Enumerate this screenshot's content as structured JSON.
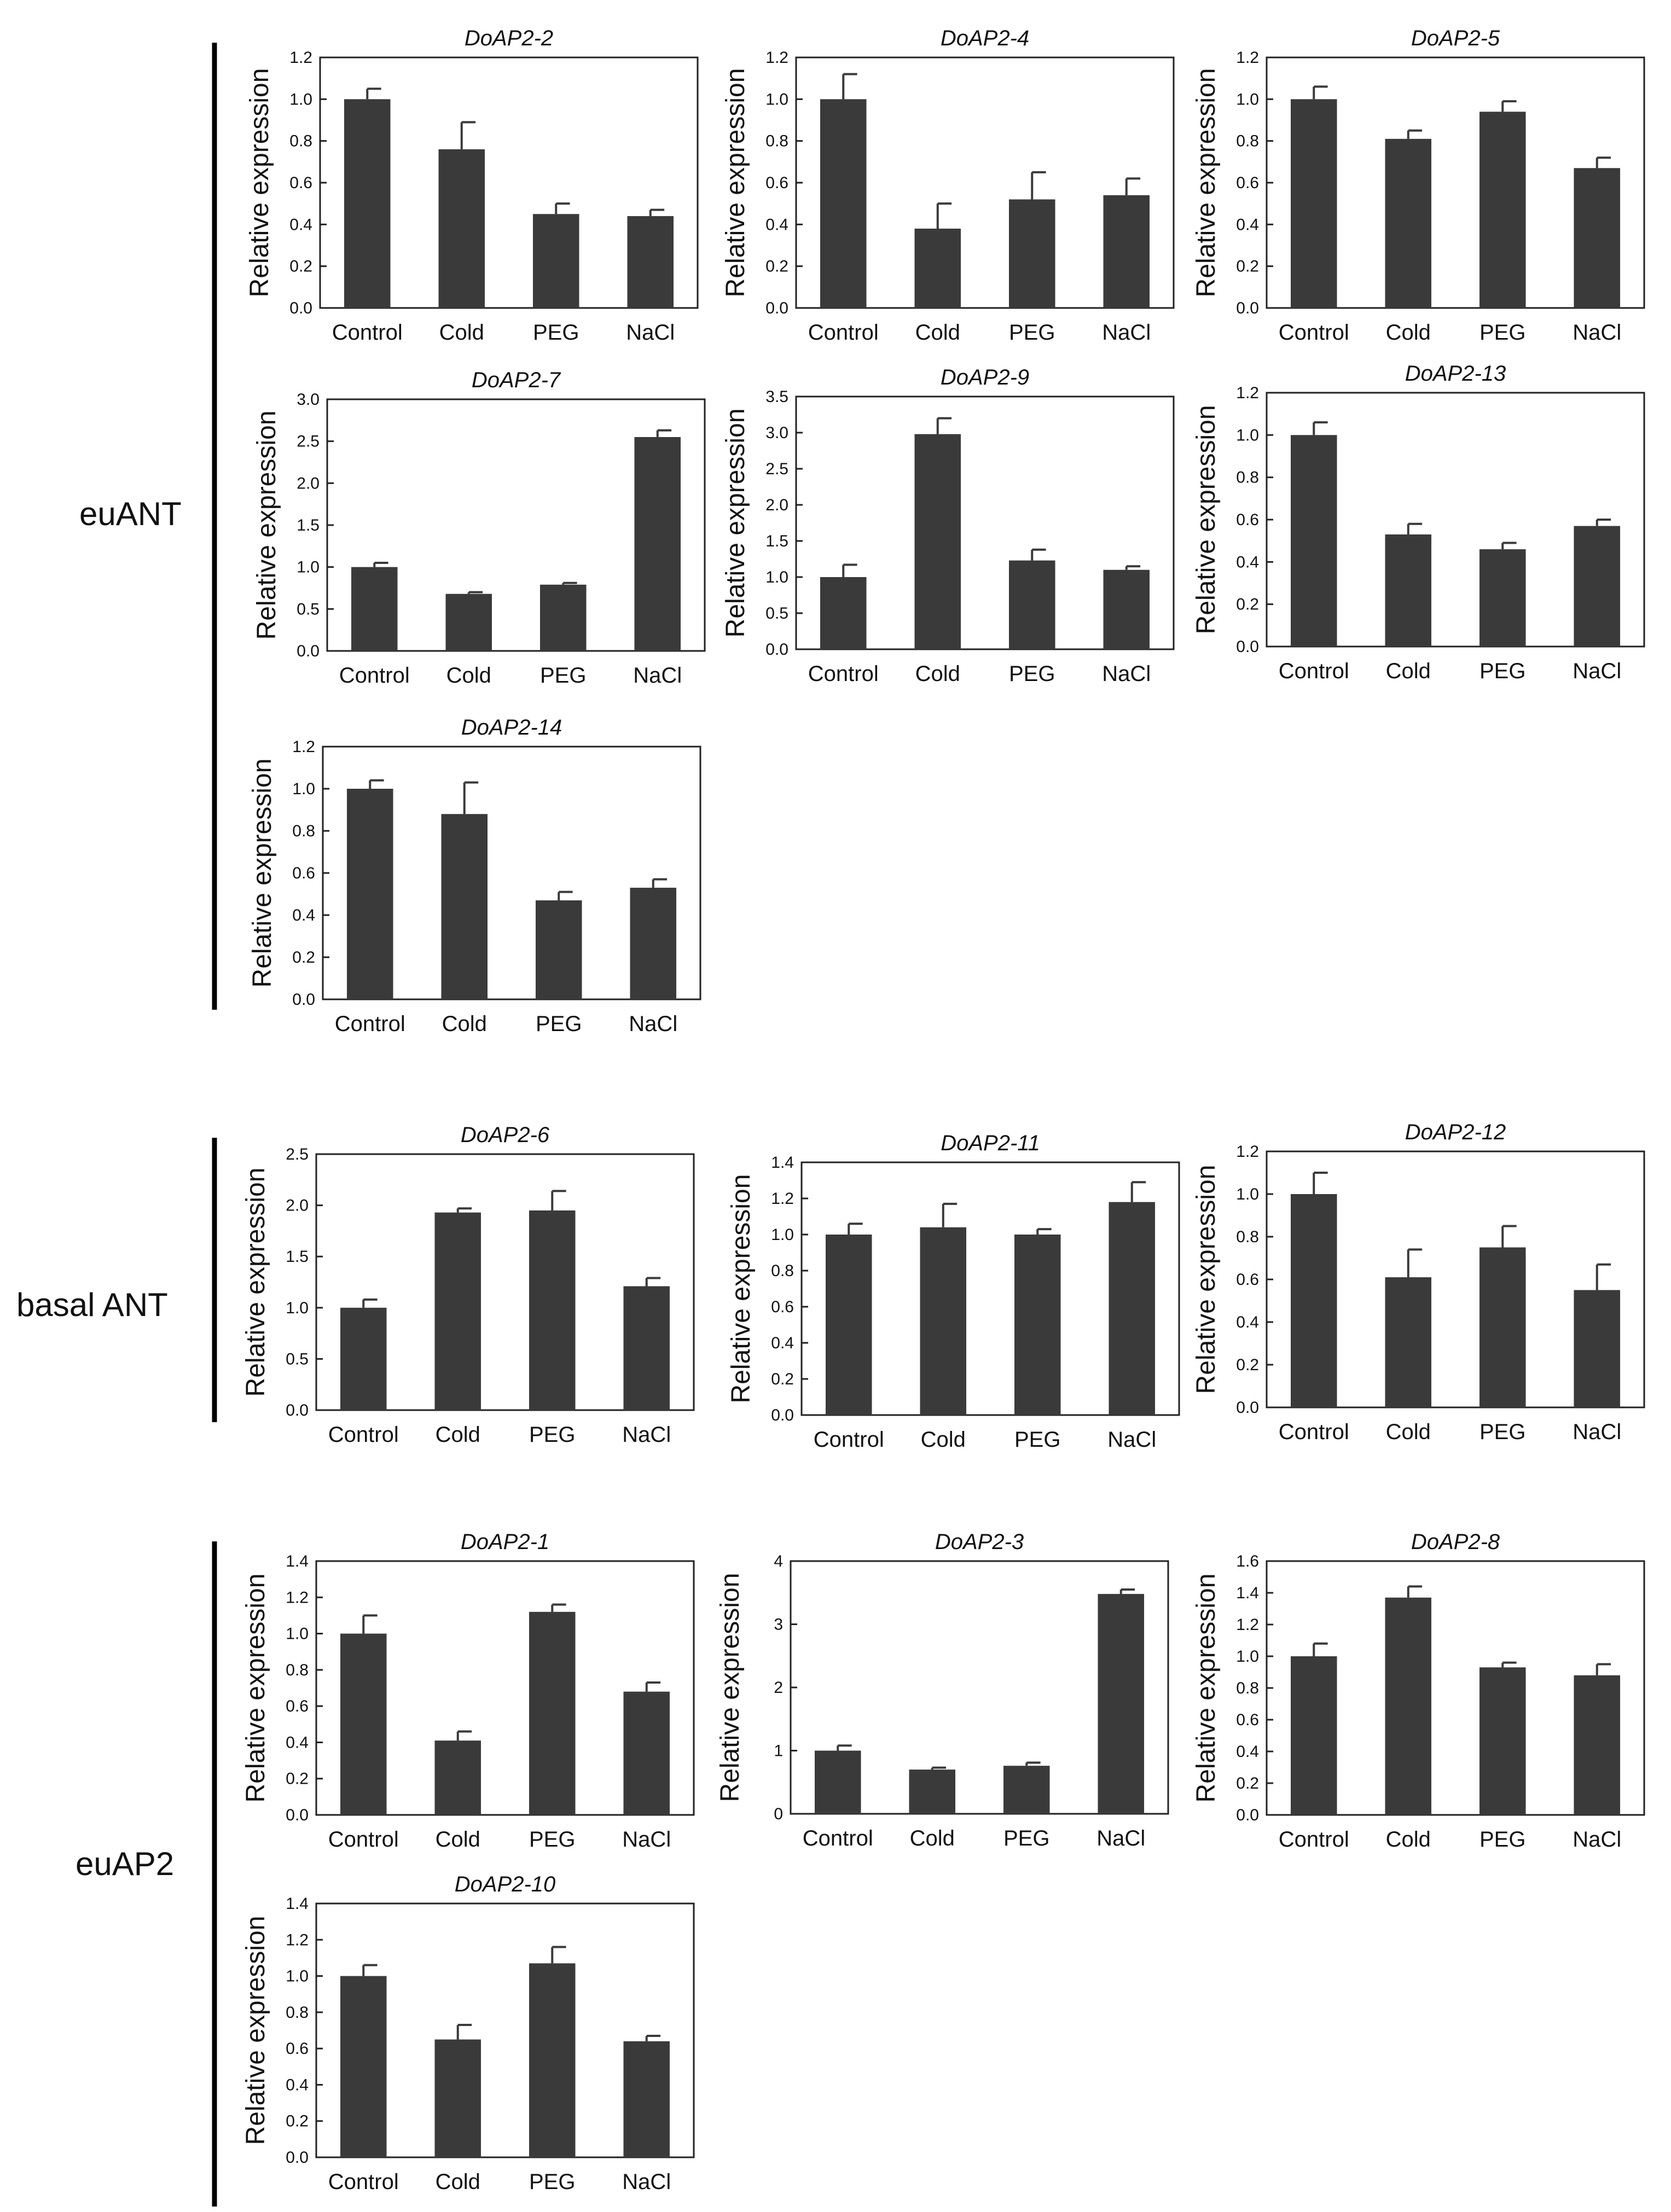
{
  "chart_data": [
    {
      "type": "bar",
      "title": "DoAP2-2",
      "group": "euANT",
      "ylabel": "Relative expression",
      "categories": [
        "Control",
        "Cold",
        "PEG",
        "NaCl"
      ],
      "values": [
        1.0,
        0.76,
        0.45,
        0.44
      ],
      "errors": [
        0.05,
        0.13,
        0.05,
        0.03
      ],
      "ylim": [
        0,
        1.2
      ],
      "yticks": [
        0,
        0.2,
        0.4,
        0.6,
        0.8,
        1.0,
        1.2
      ],
      "tick_labels": [
        "0.0",
        "0.2",
        "0.4",
        "0.6",
        "0.8",
        "1.0",
        "1.2"
      ]
    },
    {
      "type": "bar",
      "title": "DoAP2-4",
      "group": "euANT",
      "ylabel": "Relative expression",
      "categories": [
        "Control",
        "Cold",
        "PEG",
        "NaCl"
      ],
      "values": [
        1.0,
        0.38,
        0.52,
        0.54
      ],
      "errors": [
        0.12,
        0.12,
        0.13,
        0.08
      ],
      "ylim": [
        0,
        1.2
      ],
      "yticks": [
        0,
        0.2,
        0.4,
        0.6,
        0.8,
        1.0,
        1.2
      ],
      "tick_labels": [
        "0.0",
        "0.2",
        "0.4",
        "0.6",
        "0.8",
        "1.0",
        "1.2"
      ]
    },
    {
      "type": "bar",
      "title": "DoAP2-5",
      "group": "euANT",
      "ylabel": "Relative expression",
      "categories": [
        "Control",
        "Cold",
        "PEG",
        "NaCl"
      ],
      "values": [
        1.0,
        0.81,
        0.94,
        0.67
      ],
      "errors": [
        0.06,
        0.04,
        0.05,
        0.05
      ],
      "ylim": [
        0,
        1.2
      ],
      "yticks": [
        0,
        0.2,
        0.4,
        0.6,
        0.8,
        1.0,
        1.2
      ],
      "tick_labels": [
        "0.0",
        "0.2",
        "0.4",
        "0.6",
        "0.8",
        "1.0",
        "1.2"
      ]
    },
    {
      "type": "bar",
      "title": "DoAP2-7",
      "group": "euANT",
      "ylabel": "Relative expression",
      "categories": [
        "Control",
        "Cold",
        "PEG",
        "NaCl"
      ],
      "values": [
        1.0,
        0.68,
        0.79,
        2.55
      ],
      "errors": [
        0.05,
        0.02,
        0.02,
        0.08
      ],
      "ylim": [
        0,
        3.0
      ],
      "yticks": [
        0,
        0.5,
        1.0,
        1.5,
        2.0,
        2.5,
        3.0
      ],
      "tick_labels": [
        "0.0",
        "0.5",
        "1.0",
        "1.5",
        "2.0",
        "2.5",
        "3.0"
      ]
    },
    {
      "type": "bar",
      "title": "DoAP2-9",
      "group": "euANT",
      "ylabel": "Relative expression",
      "categories": [
        "Control",
        "Cold",
        "PEG",
        "NaCl"
      ],
      "values": [
        1.0,
        2.98,
        1.23,
        1.1
      ],
      "errors": [
        0.17,
        0.22,
        0.15,
        0.05
      ],
      "ylim": [
        0,
        3.5
      ],
      "yticks": [
        0,
        0.5,
        1.0,
        1.5,
        2.0,
        2.5,
        3.0,
        3.5
      ],
      "tick_labels": [
        "0.0",
        "0.5",
        "1.0",
        "1.5",
        "2.0",
        "2.5",
        "3.0",
        "3.5"
      ]
    },
    {
      "type": "bar",
      "title": "DoAP2-13",
      "group": "euANT",
      "ylabel": "Relative expression",
      "categories": [
        "Control",
        "Cold",
        "PEG",
        "NaCl"
      ],
      "values": [
        1.0,
        0.53,
        0.46,
        0.57
      ],
      "errors": [
        0.06,
        0.05,
        0.03,
        0.03
      ],
      "ylim": [
        0,
        1.2
      ],
      "yticks": [
        0,
        0.2,
        0.4,
        0.6,
        0.8,
        1.0,
        1.2
      ],
      "tick_labels": [
        "0.0",
        "0.2",
        "0.4",
        "0.6",
        "0.8",
        "1.0",
        "1.2"
      ]
    },
    {
      "type": "bar",
      "title": "DoAP2-14",
      "group": "euANT",
      "ylabel": "Relative expression",
      "categories": [
        "Control",
        "Cold",
        "PEG",
        "NaCl"
      ],
      "values": [
        1.0,
        0.88,
        0.47,
        0.53
      ],
      "errors": [
        0.04,
        0.15,
        0.04,
        0.04
      ],
      "ylim": [
        0,
        1.2
      ],
      "yticks": [
        0,
        0.2,
        0.4,
        0.6,
        0.8,
        1.0,
        1.2
      ],
      "tick_labels": [
        "0.0",
        "0.2",
        "0.4",
        "0.6",
        "0.8",
        "1.0",
        "1.2"
      ]
    },
    {
      "type": "bar",
      "title": "DoAP2-6",
      "group": "basal ANT",
      "ylabel": "Relative expression",
      "categories": [
        "Control",
        "Cold",
        "PEG",
        "NaCl"
      ],
      "values": [
        1.0,
        1.93,
        1.95,
        1.21
      ],
      "errors": [
        0.08,
        0.04,
        0.19,
        0.08
      ],
      "ylim": [
        0,
        2.5
      ],
      "yticks": [
        0,
        0.5,
        1.0,
        1.5,
        2.0,
        2.5
      ],
      "tick_labels": [
        "0.0",
        "0.5",
        "1.0",
        "1.5",
        "2.0",
        "2.5"
      ]
    },
    {
      "type": "bar",
      "title": "DoAP2-11",
      "group": "basal ANT",
      "ylabel": "Relative expression",
      "categories": [
        "Control",
        "Cold",
        "PEG",
        "NaCl"
      ],
      "values": [
        1.0,
        1.04,
        1.0,
        1.18
      ],
      "errors": [
        0.06,
        0.13,
        0.03,
        0.11
      ],
      "ylim": [
        0,
        1.4
      ],
      "yticks": [
        0,
        0.2,
        0.4,
        0.6,
        0.8,
        1.0,
        1.2,
        1.4
      ],
      "tick_labels": [
        "0.0",
        "0.2",
        "0.4",
        "0.6",
        "0.8",
        "1.0",
        "1.2",
        "1.4"
      ]
    },
    {
      "type": "bar",
      "title": "DoAP2-12",
      "group": "basal ANT",
      "ylabel": "Relative expression",
      "categories": [
        "Control",
        "Cold",
        "PEG",
        "NaCl"
      ],
      "values": [
        1.0,
        0.61,
        0.75,
        0.55
      ],
      "errors": [
        0.1,
        0.13,
        0.1,
        0.12
      ],
      "ylim": [
        0,
        1.2
      ],
      "yticks": [
        0,
        0.2,
        0.4,
        0.6,
        0.8,
        1.0,
        1.2
      ],
      "tick_labels": [
        "0.0",
        "0.2",
        "0.4",
        "0.6",
        "0.8",
        "1.0",
        "1.2"
      ]
    },
    {
      "type": "bar",
      "title": "DoAP2-1",
      "group": "euAP2",
      "ylabel": "Relative expression",
      "categories": [
        "Control",
        "Cold",
        "PEG",
        "NaCl"
      ],
      "values": [
        1.0,
        0.41,
        1.12,
        0.68
      ],
      "errors": [
        0.1,
        0.05,
        0.04,
        0.05
      ],
      "ylim": [
        0,
        1.4
      ],
      "yticks": [
        0,
        0.2,
        0.4,
        0.6,
        0.8,
        1.0,
        1.2,
        1.4
      ],
      "tick_labels": [
        "0.0",
        "0.2",
        "0.4",
        "0.6",
        "0.8",
        "1.0",
        "1.2",
        "1.4"
      ]
    },
    {
      "type": "bar",
      "title": "DoAP2-3",
      "group": "euAP2",
      "ylabel": "Relative expression",
      "categories": [
        "Control",
        "Cold",
        "PEG",
        "NaCl"
      ],
      "values": [
        1.0,
        0.7,
        0.76,
        3.48
      ],
      "errors": [
        0.08,
        0.03,
        0.05,
        0.07
      ],
      "ylim": [
        0,
        4
      ],
      "yticks": [
        0,
        1,
        2,
        3,
        4
      ],
      "tick_labels": [
        "0",
        "1",
        "2",
        "3",
        "4"
      ]
    },
    {
      "type": "bar",
      "title": "DoAP2-8",
      "group": "euAP2",
      "ylabel": "Relative expression",
      "categories": [
        "Control",
        "Cold",
        "PEG",
        "NaCl"
      ],
      "values": [
        1.0,
        1.37,
        0.93,
        0.88
      ],
      "errors": [
        0.08,
        0.07,
        0.03,
        0.07
      ],
      "ylim": [
        0,
        1.6
      ],
      "yticks": [
        0,
        0.2,
        0.4,
        0.6,
        0.8,
        1.0,
        1.2,
        1.4,
        1.6
      ],
      "tick_labels": [
        "0.0",
        "0.2",
        "0.4",
        "0.6",
        "0.8",
        "1.0",
        "1.2",
        "1.4",
        "1.6"
      ]
    },
    {
      "type": "bar",
      "title": "DoAP2-10",
      "group": "euAP2",
      "ylabel": "Relative expression",
      "categories": [
        "Control",
        "Cold",
        "PEG",
        "NaCl"
      ],
      "values": [
        1.0,
        0.65,
        1.07,
        0.64
      ],
      "errors": [
        0.06,
        0.08,
        0.09,
        0.03
      ],
      "ylim": [
        0,
        1.4
      ],
      "yticks": [
        0,
        0.2,
        0.4,
        0.6,
        0.8,
        1.0,
        1.2,
        1.4
      ],
      "tick_labels": [
        "0.0",
        "0.2",
        "0.4",
        "0.6",
        "0.8",
        "1.0",
        "1.2",
        "1.4"
      ]
    }
  ],
  "groups": [
    "euANT",
    "basal ANT",
    "euAP2"
  ],
  "colors": {
    "bar": "#3a3a3a",
    "axis": "#222222",
    "background": "#ffffff"
  }
}
